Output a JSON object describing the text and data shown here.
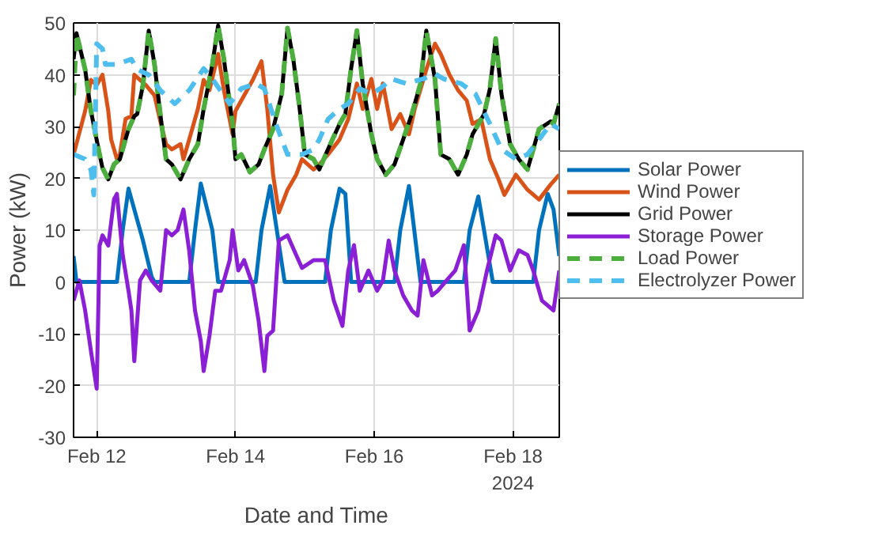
{
  "chart_data": {
    "type": "line",
    "xlabel": "Date and Time",
    "ylabel": "Power (kW)",
    "xlim": [
      "2024-02-11T16:00",
      "2024-02-18T16:00"
    ],
    "xticks": [
      {
        "value": "2024-02-12",
        "label": "Feb 12"
      },
      {
        "value": "2024-02-14",
        "label": "Feb 14"
      },
      {
        "value": "2024-02-16",
        "label": "Feb 16"
      },
      {
        "value": "2024-02-18",
        "label": "Feb 18\n2024"
      }
    ],
    "ylim": [
      -30,
      50
    ],
    "yticks": [
      -30,
      -20,
      -10,
      0,
      10,
      20,
      30,
      40,
      50
    ],
    "grid": true,
    "legend": "right",
    "series": [
      {
        "name": "Solar Power",
        "color": "#0072bd",
        "line_style": "solid",
        "x": [
          "2024-02-11T16:00",
          "2024-02-11T17:00",
          "2024-02-12T07:00",
          "2024-02-12T09:00",
          "2024-02-12T11:00",
          "2024-02-12T12:00",
          "2024-02-12T16:00",
          "2024-02-12T19:00",
          "2024-02-12T20:00",
          "2024-02-13T08:00",
          "2024-02-13T10:00",
          "2024-02-13T12:00",
          "2024-02-13T16:00",
          "2024-02-13T18:00",
          "2024-02-14T07:00",
          "2024-02-14T09:00",
          "2024-02-14T12:00",
          "2024-02-14T17:00",
          "2024-02-15T07:00",
          "2024-02-15T09:00",
          "2024-02-15T12:00",
          "2024-02-15T14:00",
          "2024-02-15T16:00",
          "2024-02-16T07:00",
          "2024-02-16T09:00",
          "2024-02-16T12:00",
          "2024-02-16T16:00",
          "2024-02-17T07:00",
          "2024-02-17T09:00",
          "2024-02-17T12:00",
          "2024-02-17T17:00",
          "2024-02-18T07:00",
          "2024-02-18T09:00",
          "2024-02-18T12:00",
          "2024-02-18T14:00",
          "2024-02-18T16:00"
        ],
        "values": [
          5,
          0,
          0,
          10,
          18,
          16,
          8,
          1,
          0,
          0,
          10,
          19,
          10,
          0,
          0,
          10,
          18.5,
          0,
          0,
          10,
          18,
          17,
          0,
          0,
          10,
          18.5,
          0,
          0,
          10,
          16.5,
          0,
          0,
          10,
          17,
          14,
          5
        ]
      },
      {
        "name": "Wind Power",
        "color": "#d95319",
        "line_style": "solid",
        "x": [
          "2024-02-11T16:00",
          "2024-02-11T20:00",
          "2024-02-11T22:00",
          "2024-02-12T00:00",
          "2024-02-12T02:00",
          "2024-02-12T04:00",
          "2024-02-12T05:00",
          "2024-02-12T07:00",
          "2024-02-12T08:00",
          "2024-02-12T10:00",
          "2024-02-12T12:00",
          "2024-02-12T13:00",
          "2024-02-12T15:00",
          "2024-02-12T17:00",
          "2024-02-12T20:00",
          "2024-02-12T22:00",
          "2024-02-13T00:00",
          "2024-02-13T02:00",
          "2024-02-13T05:00",
          "2024-02-13T06:00",
          "2024-02-13T08:00",
          "2024-02-13T11:00",
          "2024-02-13T13:00",
          "2024-02-13T15:00",
          "2024-02-13T18:00",
          "2024-02-13T20:00",
          "2024-02-13T23:00",
          "2024-02-14T00:00",
          "2024-02-14T02:00",
          "2024-02-14T06:00",
          "2024-02-14T09:00",
          "2024-02-14T11:00",
          "2024-02-14T13:00",
          "2024-02-14T15:00",
          "2024-02-14T18:00",
          "2024-02-14T21:00",
          "2024-02-14T23:00",
          "2024-02-15T03:00",
          "2024-02-15T05:00",
          "2024-02-15T08:00",
          "2024-02-15T12:00",
          "2024-02-15T15:00",
          "2024-02-15T18:00",
          "2024-02-15T20:00",
          "2024-02-15T23:00",
          "2024-02-16T01:00",
          "2024-02-16T03:00",
          "2024-02-16T06:00",
          "2024-02-16T09:00",
          "2024-02-16T12:00",
          "2024-02-16T14:00",
          "2024-02-16T18:00",
          "2024-02-16T21:00",
          "2024-02-16T23:00",
          "2024-02-17T02:00",
          "2024-02-17T05:00",
          "2024-02-17T08:00",
          "2024-02-17T10:00",
          "2024-02-17T13:00",
          "2024-02-17T16:00",
          "2024-02-17T19:00",
          "2024-02-17T21:00",
          "2024-02-18T01:00",
          "2024-02-18T05:00",
          "2024-02-18T09:00",
          "2024-02-18T13:00",
          "2024-02-18T16:00"
        ],
        "values": [
          24.6,
          33,
          39,
          38,
          40,
          33,
          27.5,
          23.7,
          24.6,
          31.5,
          32,
          40,
          39,
          38,
          36,
          31,
          26.6,
          25.6,
          26.6,
          23.7,
          27.5,
          33.4,
          39,
          37,
          44,
          37,
          28.5,
          33,
          35,
          39,
          42.6,
          33.4,
          20.7,
          13.4,
          17.8,
          20.7,
          23.7,
          21.7,
          22.7,
          24.6,
          27.5,
          31.4,
          38.3,
          33.4,
          39.2,
          33.4,
          38.3,
          29.5,
          32.4,
          28.5,
          33.4,
          41,
          46,
          44,
          40,
          37,
          35,
          30.5,
          31.4,
          23.7,
          19.8,
          16.8,
          20.7,
          17.8,
          15.9,
          18.8,
          20.7
        ]
      },
      {
        "name": "Grid Power",
        "color": "#000000",
        "line_style": "solid",
        "x": [
          "2024-02-11T16:00",
          "2024-02-11T17:00",
          "2024-02-11T20:00",
          "2024-02-11T22:00",
          "2024-02-12T01:00",
          "2024-02-12T02:00",
          "2024-02-12T04:00",
          "2024-02-12T06:00",
          "2024-02-12T08:00",
          "2024-02-12T11:00",
          "2024-02-12T13:00",
          "2024-02-12T14:00",
          "2024-02-12T16:00",
          "2024-02-12T18:00",
          "2024-02-12T20:00",
          "2024-02-12T22:00",
          "2024-02-13T00:00",
          "2024-02-13T02:00",
          "2024-02-13T05:00",
          "2024-02-13T08:00",
          "2024-02-13T11:00",
          "2024-02-13T13:00",
          "2024-02-13T16:00",
          "2024-02-13T18:00",
          "2024-02-13T20:00",
          "2024-02-13T23:00",
          "2024-02-14T00:00",
          "2024-02-14T02:00",
          "2024-02-14T05:00",
          "2024-02-14T08:00",
          "2024-02-14T10:00",
          "2024-02-14T13:00",
          "2024-02-14T16:00",
          "2024-02-14T18:00",
          "2024-02-14T20:00",
          "2024-02-14T22:00",
          "2024-02-15T00:00",
          "2024-02-15T03:00",
          "2024-02-15T05:00",
          "2024-02-15T08:00",
          "2024-02-15T12:00",
          "2024-02-15T14:00",
          "2024-02-15T16:00",
          "2024-02-15T18:00",
          "2024-02-15T20:00",
          "2024-02-15T23:00",
          "2024-02-16T01:00",
          "2024-02-16T04:00",
          "2024-02-16T07:00",
          "2024-02-16T10:00",
          "2024-02-16T13:00",
          "2024-02-16T16:00",
          "2024-02-16T18:00",
          "2024-02-16T21:00",
          "2024-02-16T23:00",
          "2024-02-17T02:00",
          "2024-02-17T05:00",
          "2024-02-17T08:00",
          "2024-02-17T10:00",
          "2024-02-17T14:00",
          "2024-02-17T16:00",
          "2024-02-17T18:00",
          "2024-02-17T20:00",
          "2024-02-17T23:00",
          "2024-02-18T02:00",
          "2024-02-18T05:00",
          "2024-02-18T09:00",
          "2024-02-18T13:00",
          "2024-02-18T14:00",
          "2024-02-18T16:00"
        ],
        "values": [
          43,
          48,
          41,
          33,
          24.6,
          22,
          19.8,
          22.7,
          23.7,
          29.5,
          32,
          32.4,
          38,
          48.5,
          42,
          32.4,
          23.7,
          22.7,
          19.8,
          23.7,
          26.6,
          33.4,
          42,
          49.5,
          43,
          30.5,
          23.7,
          24.6,
          21.2,
          22.7,
          25.6,
          29.5,
          36.3,
          49,
          43,
          34.4,
          24.6,
          23.7,
          21.7,
          25.6,
          30.5,
          32.4,
          41.2,
          48.5,
          38.3,
          28.5,
          23.7,
          20.7,
          22.7,
          27.5,
          32.4,
          38.3,
          48.5,
          39.2,
          24.6,
          23.7,
          20.7,
          24.6,
          28.5,
          32.4,
          37.3,
          47,
          36.3,
          26.6,
          23.7,
          21.7,
          29.5,
          31,
          30.5,
          34.4
        ]
      },
      {
        "name": "Storage Power",
        "color": "#8a1fd6",
        "line_style": "solid",
        "x": [
          "2024-02-11T16:00",
          "2024-02-11T18:00",
          "2024-02-11T20:00",
          "2024-02-11T22:00",
          "2024-02-12T00:00",
          "2024-02-12T01:00",
          "2024-02-12T02:00",
          "2024-02-12T04:00",
          "2024-02-12T06:00",
          "2024-02-12T07:00",
          "2024-02-12T09:00",
          "2024-02-12T11:00",
          "2024-02-12T12:00",
          "2024-02-12T13:00",
          "2024-02-12T15:00",
          "2024-02-12T17:00",
          "2024-02-12T19:00",
          "2024-02-12T22:00",
          "2024-02-13T00:00",
          "2024-02-13T02:00",
          "2024-02-13T04:00",
          "2024-02-13T06:00",
          "2024-02-13T08:00",
          "2024-02-13T10:00",
          "2024-02-13T12:00",
          "2024-02-13T13:00",
          "2024-02-13T15:00",
          "2024-02-13T17:00",
          "2024-02-13T19:00",
          "2024-02-13T22:00",
          "2024-02-13T23:00",
          "2024-02-14T01:00",
          "2024-02-14T03:00",
          "2024-02-14T06:00",
          "2024-02-14T08:00",
          "2024-02-14T10:00",
          "2024-02-14T11:00",
          "2024-02-14T13:00",
          "2024-02-14T15:00",
          "2024-02-14T18:00",
          "2024-02-14T21:00",
          "2024-02-14T23:00",
          "2024-02-15T03:00",
          "2024-02-15T07:00",
          "2024-02-15T10:00",
          "2024-02-15T13:00",
          "2024-02-15T15:00",
          "2024-02-15T17:00",
          "2024-02-15T19:00",
          "2024-02-15T22:00",
          "2024-02-16T01:00",
          "2024-02-16T03:00",
          "2024-02-16T05:00",
          "2024-02-16T07:00",
          "2024-02-16T10:00",
          "2024-02-16T13:00",
          "2024-02-16T15:00",
          "2024-02-16T17:00",
          "2024-02-16T20:00",
          "2024-02-16T22:00",
          "2024-02-17T01:00",
          "2024-02-17T04:00",
          "2024-02-17T07:00",
          "2024-02-17T09:00",
          "2024-02-17T12:00",
          "2024-02-17T15:00",
          "2024-02-17T18:00",
          "2024-02-17T20:00",
          "2024-02-17T23:00",
          "2024-02-18T02:00",
          "2024-02-18T05:00",
          "2024-02-18T07:00",
          "2024-02-18T10:00",
          "2024-02-18T14:00",
          "2024-02-18T16:00"
        ],
        "values": [
          -3.6,
          0.3,
          -5.5,
          -13.3,
          -20.6,
          7,
          9,
          7,
          16,
          17,
          5.2,
          -1.7,
          -5.5,
          -15.3,
          0.3,
          2.2,
          0.3,
          -1.7,
          10,
          9,
          10,
          14,
          6,
          -5.5,
          -11.4,
          -17.2,
          -10.4,
          -1.7,
          -1.7,
          4.2,
          10,
          2.2,
          4.2,
          -0.7,
          -7.5,
          -17.2,
          -10.4,
          -9.4,
          8,
          9,
          5.2,
          2.7,
          4.2,
          4.2,
          -3.6,
          -8.5,
          2.2,
          7.1,
          -1.7,
          2.2,
          -1.7,
          0.3,
          8,
          2.2,
          -2.6,
          -5.5,
          -6.5,
          4.2,
          -2.6,
          -1.7,
          0.3,
          2.2,
          7.1,
          -9.4,
          -5.5,
          2.2,
          9,
          8,
          2.2,
          6.1,
          5.2,
          2.2,
          -3.6,
          -5.5,
          2.2
        ]
      },
      {
        "name": "Load Power",
        "color": "#4cae3c",
        "line_style": "dashed",
        "x": [
          "2024-02-11T16:00",
          "2024-02-11T17:00",
          "2024-02-11T20:00",
          "2024-02-11T22:00",
          "2024-02-12T01:00",
          "2024-02-12T02:00",
          "2024-02-12T04:00",
          "2024-02-12T06:00",
          "2024-02-12T08:00",
          "2024-02-12T11:00",
          "2024-02-12T13:00",
          "2024-02-12T14:00",
          "2024-02-12T16:00",
          "2024-02-12T18:00",
          "2024-02-12T20:00",
          "2024-02-12T22:00",
          "2024-02-13T00:00",
          "2024-02-13T02:00",
          "2024-02-13T05:00",
          "2024-02-13T08:00",
          "2024-02-13T11:00",
          "2024-02-13T13:00",
          "2024-02-13T16:00",
          "2024-02-13T18:00",
          "2024-02-13T20:00",
          "2024-02-13T23:00",
          "2024-02-14T00:00",
          "2024-02-14T02:00",
          "2024-02-14T05:00",
          "2024-02-14T08:00",
          "2024-02-14T10:00",
          "2024-02-14T13:00",
          "2024-02-14T16:00",
          "2024-02-14T18:00",
          "2024-02-14T20:00",
          "2024-02-14T22:00",
          "2024-02-15T00:00",
          "2024-02-15T03:00",
          "2024-02-15T05:00",
          "2024-02-15T08:00",
          "2024-02-15T12:00",
          "2024-02-15T14:00",
          "2024-02-15T16:00",
          "2024-02-15T18:00",
          "2024-02-15T20:00",
          "2024-02-15T23:00",
          "2024-02-16T01:00",
          "2024-02-16T04:00",
          "2024-02-16T07:00",
          "2024-02-16T10:00",
          "2024-02-16T13:00",
          "2024-02-16T16:00",
          "2024-02-16T18:00",
          "2024-02-16T21:00",
          "2024-02-16T23:00",
          "2024-02-17T02:00",
          "2024-02-17T05:00",
          "2024-02-17T08:00",
          "2024-02-17T10:00",
          "2024-02-17T14:00",
          "2024-02-17T16:00",
          "2024-02-17T18:00",
          "2024-02-17T20:00",
          "2024-02-17T23:00",
          "2024-02-18T02:00",
          "2024-02-18T05:00",
          "2024-02-18T09:00",
          "2024-02-18T13:00",
          "2024-02-18T14:00",
          "2024-02-18T16:00"
        ],
        "values": [
          36,
          48,
          41,
          33,
          24.6,
          22,
          19.8,
          22.7,
          23.7,
          29.5,
          32,
          32.4,
          38,
          48.5,
          42,
          32.4,
          23.7,
          22.7,
          19.8,
          23.7,
          26.6,
          33.4,
          42,
          49.5,
          43,
          30.5,
          23.7,
          24.6,
          21.2,
          22.7,
          25.6,
          29.5,
          36.3,
          49,
          43,
          34.4,
          24.6,
          23.7,
          21.7,
          25.6,
          30.5,
          32.4,
          41.2,
          48.5,
          38.3,
          28.5,
          23.7,
          20.7,
          22.7,
          27.5,
          32.4,
          38.3,
          48.5,
          39.2,
          24.6,
          23.7,
          20.7,
          24.6,
          28.5,
          32.4,
          37.3,
          47,
          36.3,
          26.6,
          23.7,
          21.7,
          29.5,
          31,
          30.5,
          34.4
        ]
      },
      {
        "name": "Electrolyzer Power",
        "color": "#4dbeee",
        "line_style": "dashed",
        "x": [
          "2024-02-11T16:00",
          "2024-02-11T20:00",
          "2024-02-11T22:00",
          "2024-02-11T23:00",
          "2024-02-12T00:00",
          "2024-02-12T02:00",
          "2024-02-12T03:00",
          "2024-02-12T07:00",
          "2024-02-12T12:00",
          "2024-02-12T14:00",
          "2024-02-12T18:00",
          "2024-02-12T22:00",
          "2024-02-13T03:00",
          "2024-02-13T08:00",
          "2024-02-13T13:00",
          "2024-02-13T16:00",
          "2024-02-13T22:00",
          "2024-02-14T02:00",
          "2024-02-14T07:00",
          "2024-02-14T10:00",
          "2024-02-14T14:00",
          "2024-02-14T18:00",
          "2024-02-14T23:00",
          "2024-02-15T03:00",
          "2024-02-15T05:00",
          "2024-02-15T08:00",
          "2024-02-15T12:00",
          "2024-02-15T15:00",
          "2024-02-15T19:00",
          "2024-02-15T23:00",
          "2024-02-16T02:00",
          "2024-02-16T06:00",
          "2024-02-16T11:00",
          "2024-02-16T17:00",
          "2024-02-16T21:00",
          "2024-02-17T00:00",
          "2024-02-17T06:00",
          "2024-02-17T11:00",
          "2024-02-17T16:00",
          "2024-02-17T20:00",
          "2024-02-18T01:00",
          "2024-02-18T05:00",
          "2024-02-18T09:00",
          "2024-02-18T13:00",
          "2024-02-18T16:00"
        ],
        "values": [
          24.6,
          23.7,
          21.7,
          16.8,
          46,
          45,
          42,
          42,
          43,
          41,
          40,
          37,
          34.4,
          37,
          41.2,
          39.2,
          34.4,
          37.3,
          38.3,
          37.3,
          30.5,
          24.6,
          24.6,
          25.6,
          27.5,
          31.4,
          33.4,
          34.4,
          37.3,
          36.3,
          37.3,
          39.2,
          38.3,
          39.2,
          40.2,
          39.2,
          38.3,
          36.3,
          30.5,
          25.6,
          23.7,
          24.6,
          27.5,
          30.5,
          29.5
        ]
      }
    ]
  }
}
